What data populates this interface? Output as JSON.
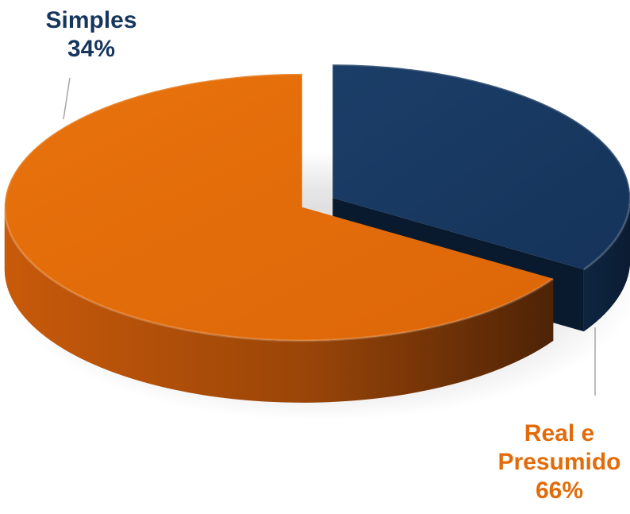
{
  "chart_data": {
    "type": "pie",
    "style": "3d-exploded",
    "title": "",
    "slices": [
      {
        "label": "Simples",
        "value": 34,
        "value_label": "34%",
        "color": "#17365D"
      },
      {
        "label_lines": [
          "Real e",
          "Presumido"
        ],
        "value": 66,
        "value_label": "66%",
        "color": "#E26B0A"
      }
    ],
    "legend": "none"
  }
}
